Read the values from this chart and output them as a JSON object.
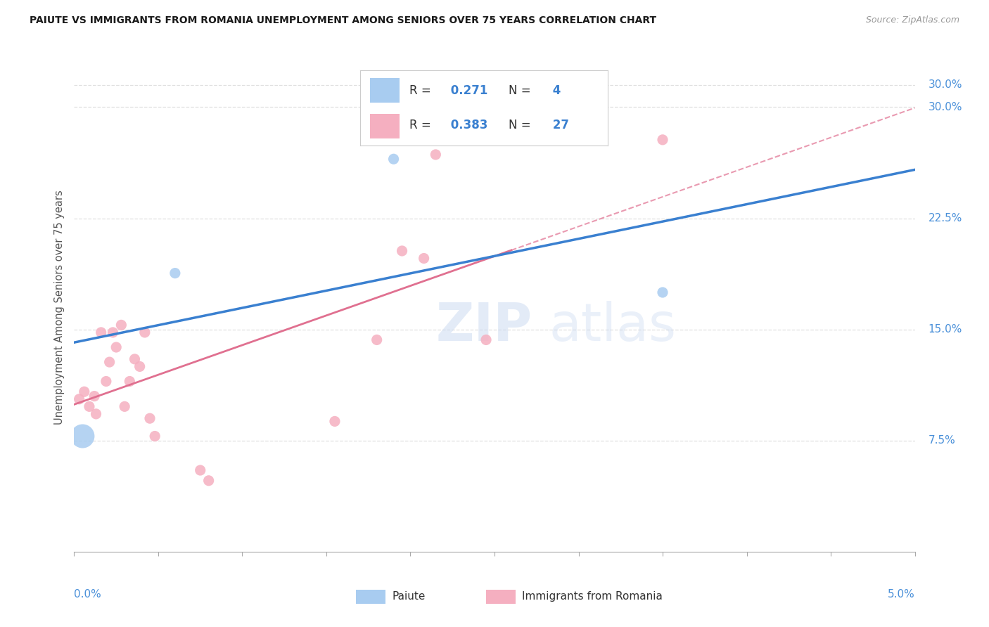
{
  "title": "PAIUTE VS IMMIGRANTS FROM ROMANIA UNEMPLOYMENT AMONG SENIORS OVER 75 YEARS CORRELATION CHART",
  "source": "Source: ZipAtlas.com",
  "ylabel": "Unemployment Among Seniors over 75 years",
  "yticks": [
    7.5,
    15.0,
    22.5,
    30.0
  ],
  "ytick_labels": [
    "7.5%",
    "15.0%",
    "22.5%",
    "30.0%"
  ],
  "xmin": 0.0,
  "xmax": 5.0,
  "ymin": 0.0,
  "ymax": 33.0,
  "paiute_color": "#a8ccf0",
  "romania_color": "#f5afc0",
  "paiute_R": 0.271,
  "paiute_N": 4,
  "romania_R": 0.383,
  "romania_N": 27,
  "legend_label_paiute": "Paiute",
  "legend_label_romania": "Immigrants from Romania",
  "paiute_points": [
    [
      0.05,
      7.8
    ],
    [
      0.6,
      18.8
    ],
    [
      1.9,
      26.5
    ],
    [
      3.5,
      17.5
    ]
  ],
  "romania_points": [
    [
      0.03,
      10.3
    ],
    [
      0.06,
      10.8
    ],
    [
      0.09,
      9.8
    ],
    [
      0.12,
      10.5
    ],
    [
      0.13,
      9.3
    ],
    [
      0.16,
      14.8
    ],
    [
      0.19,
      11.5
    ],
    [
      0.21,
      12.8
    ],
    [
      0.23,
      14.8
    ],
    [
      0.25,
      13.8
    ],
    [
      0.28,
      15.3
    ],
    [
      0.3,
      9.8
    ],
    [
      0.33,
      11.5
    ],
    [
      0.36,
      13.0
    ],
    [
      0.39,
      12.5
    ],
    [
      0.42,
      14.8
    ],
    [
      0.45,
      9.0
    ],
    [
      0.48,
      7.8
    ],
    [
      0.75,
      5.5
    ],
    [
      0.8,
      4.8
    ],
    [
      1.55,
      8.8
    ],
    [
      1.8,
      14.3
    ],
    [
      1.95,
      20.3
    ],
    [
      2.08,
      19.8
    ],
    [
      2.15,
      26.8
    ],
    [
      2.45,
      14.3
    ],
    [
      3.5,
      27.8
    ]
  ],
  "paiute_line_color": "#3a80d0",
  "romania_line_color": "#e07090",
  "title_color": "#1a1a1a",
  "source_color": "#999999",
  "axis_color": "#4a90d9",
  "background_color": "#ffffff",
  "grid_color": "#e0e0e0"
}
